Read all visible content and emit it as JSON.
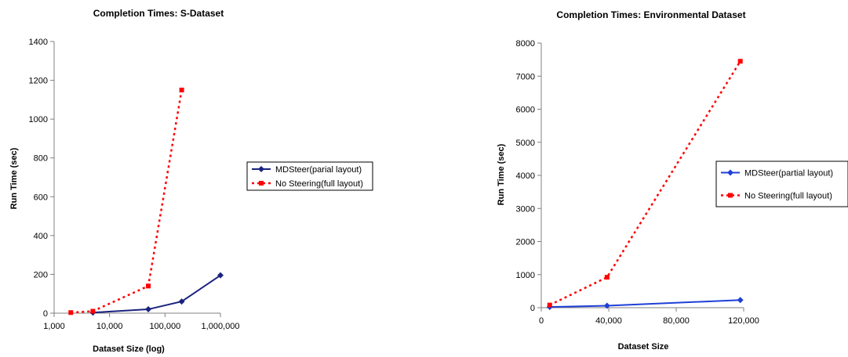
{
  "chart_data": [
    {
      "type": "line",
      "title": "Completion Times: S-Dataset",
      "xlabel": "Dataset Size (log)",
      "ylabel": "Run Time (sec)",
      "xscale": "log",
      "xlim": [
        1000,
        1000000
      ],
      "ylim": [
        0,
        1400
      ],
      "x_ticks": [
        1000,
        10000,
        100000,
        1000000
      ],
      "x_tick_labels": [
        "1,000",
        "10,000",
        "100,000",
        "1,000,000"
      ],
      "y_ticks": [
        0,
        200,
        400,
        600,
        800,
        1000,
        1200,
        1400
      ],
      "y_tick_labels": [
        "0",
        "200",
        "400",
        "600",
        "800",
        "1000",
        "1200",
        "1400"
      ],
      "grid": false,
      "legend_position": "right",
      "series": [
        {
          "name": "MDSteer(parial layout)",
          "color": "#1a237e",
          "line_style": "solid",
          "marker": "diamond",
          "x": [
            5000,
            50000,
            200000,
            1000000
          ],
          "y": [
            3,
            20,
            60,
            195
          ]
        },
        {
          "name": "No Steering(full layout)",
          "color": "#ff0000",
          "line_style": "dotted",
          "marker": "square",
          "x": [
            2000,
            5000,
            50000,
            200000
          ],
          "y": [
            3,
            10,
            140,
            1150
          ]
        }
      ]
    },
    {
      "type": "line",
      "title": "Completion Times: Environmental Dataset",
      "xlabel": "Dataset Size",
      "ylabel": "Run Time (sec)",
      "xscale": "linear",
      "xlim": [
        0,
        120000
      ],
      "ylim": [
        0,
        8000
      ],
      "x_ticks": [
        0,
        40000,
        80000,
        120000
      ],
      "x_tick_labels": [
        "0",
        "40,000",
        "80,000",
        "120,000"
      ],
      "y_ticks": [
        0,
        1000,
        2000,
        3000,
        4000,
        5000,
        6000,
        7000,
        8000
      ],
      "y_tick_labels": [
        "0",
        "1000",
        "2000",
        "3000",
        "4000",
        "5000",
        "6000",
        "7000",
        "8000"
      ],
      "grid": false,
      "legend_position": "right",
      "series": [
        {
          "name": "MDSteer(partial layout)",
          "color": "#1f3fd6",
          "line_style": "solid",
          "marker": "diamond",
          "x": [
            5000,
            39000,
            118000
          ],
          "y": [
            20,
            60,
            230
          ]
        },
        {
          "name": "No Steering(full layout)",
          "color": "#ff0000",
          "line_style": "dotted",
          "marker": "square",
          "x": [
            5000,
            39000,
            118000
          ],
          "y": [
            80,
            920,
            7450
          ]
        }
      ]
    }
  ]
}
